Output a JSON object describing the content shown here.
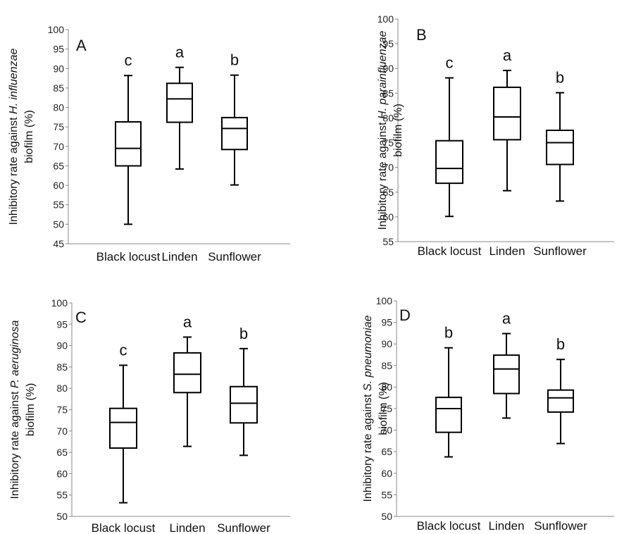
{
  "chart_data": [
    {
      "type": "box",
      "panel": "A",
      "ylabel_lines": [
        [
          "Inhibitory rate against ",
          "H. influenzae"
        ],
        [
          "biofilm (%)"
        ]
      ],
      "ylim": [
        45,
        100
      ],
      "yticks": [
        "45",
        "50",
        "55",
        "60",
        "65",
        "70",
        "75",
        "80",
        "85",
        "90",
        "95",
        "100"
      ],
      "categories": [
        "Black locust",
        "Linden",
        "Sunflower"
      ],
      "boxes": [
        {
          "category": "Black locust",
          "min": 50.0,
          "q1": 65.0,
          "median": 69.5,
          "q3": 76.3,
          "max": 88.2,
          "letter": "c"
        },
        {
          "category": "Linden",
          "min": 64.2,
          "q1": 76.2,
          "median": 82.2,
          "q3": 86.2,
          "max": 90.3,
          "letter": "a"
        },
        {
          "category": "Sunflower",
          "min": 60.1,
          "q1": 69.2,
          "median": 74.6,
          "q3": 77.4,
          "max": 88.3,
          "letter": "b"
        }
      ]
    },
    {
      "type": "box",
      "panel": "B",
      "ylabel_lines": [
        [
          "Inhibitory rate against ",
          "H. parainfluenzae"
        ],
        [
          "biofilm (%)"
        ]
      ],
      "ylim": [
        55,
        100
      ],
      "yticks": [
        "55",
        "60",
        "65",
        "70",
        "75",
        "80",
        "85",
        "90",
        "95",
        "100"
      ],
      "categories": [
        "Black locust",
        "Linden",
        "Sunflower"
      ],
      "boxes": [
        {
          "category": "Black locust",
          "min": 60.1,
          "q1": 66.8,
          "median": 69.8,
          "q3": 75.4,
          "max": 88.1,
          "letter": "c"
        },
        {
          "category": "Linden",
          "min": 65.3,
          "q1": 75.6,
          "median": 80.2,
          "q3": 86.2,
          "max": 89.6,
          "letter": "a"
        },
        {
          "category": "Sunflower",
          "min": 63.2,
          "q1": 70.6,
          "median": 75.0,
          "q3": 77.5,
          "max": 85.1,
          "letter": "b"
        }
      ]
    },
    {
      "type": "box",
      "panel": "C",
      "ylabel_lines": [
        [
          "Inhibitory rate against ",
          "P. aeruginosa"
        ],
        [
          "biofilm (%)"
        ]
      ],
      "ylim": [
        50,
        100
      ],
      "yticks": [
        "50",
        "55",
        "60",
        "65",
        "70",
        "75",
        "80",
        "85",
        "90",
        "95",
        "100"
      ],
      "categories": [
        "Black locust",
        "Linden",
        "Sunflower"
      ],
      "boxes": [
        {
          "category": "Black locust",
          "min": 53.2,
          "q1": 66.0,
          "median": 72.0,
          "q3": 75.3,
          "max": 85.4,
          "letter": "c"
        },
        {
          "category": "Linden",
          "min": 66.4,
          "q1": 79.0,
          "median": 83.3,
          "q3": 88.3,
          "max": 92.0,
          "letter": "a"
        },
        {
          "category": "Sunflower",
          "min": 64.3,
          "q1": 71.9,
          "median": 76.5,
          "q3": 80.4,
          "max": 89.3,
          "letter": "b"
        }
      ]
    },
    {
      "type": "box",
      "panel": "D",
      "ylabel_lines": [
        [
          "Inhibitory rate against ",
          "S. pneumoniae"
        ],
        [
          "biofilm (%)"
        ]
      ],
      "ylim": [
        50,
        100
      ],
      "yticks": [
        "50",
        "55",
        "60",
        "65",
        "70",
        "75",
        "80",
        "85",
        "90",
        "95",
        "100"
      ],
      "categories": [
        "Black locust",
        "Linden",
        "Sunflower"
      ],
      "boxes": [
        {
          "category": "Black locust",
          "min": 63.8,
          "q1": 69.5,
          "median": 75.0,
          "q3": 77.6,
          "max": 89.1,
          "letter": "b"
        },
        {
          "category": "Linden",
          "min": 72.8,
          "q1": 78.5,
          "median": 84.2,
          "q3": 87.4,
          "max": 92.4,
          "letter": "a"
        },
        {
          "category": "Sunflower",
          "min": 66.9,
          "q1": 74.2,
          "median": 77.5,
          "q3": 79.3,
          "max": 86.4,
          "letter": "b"
        }
      ]
    }
  ]
}
